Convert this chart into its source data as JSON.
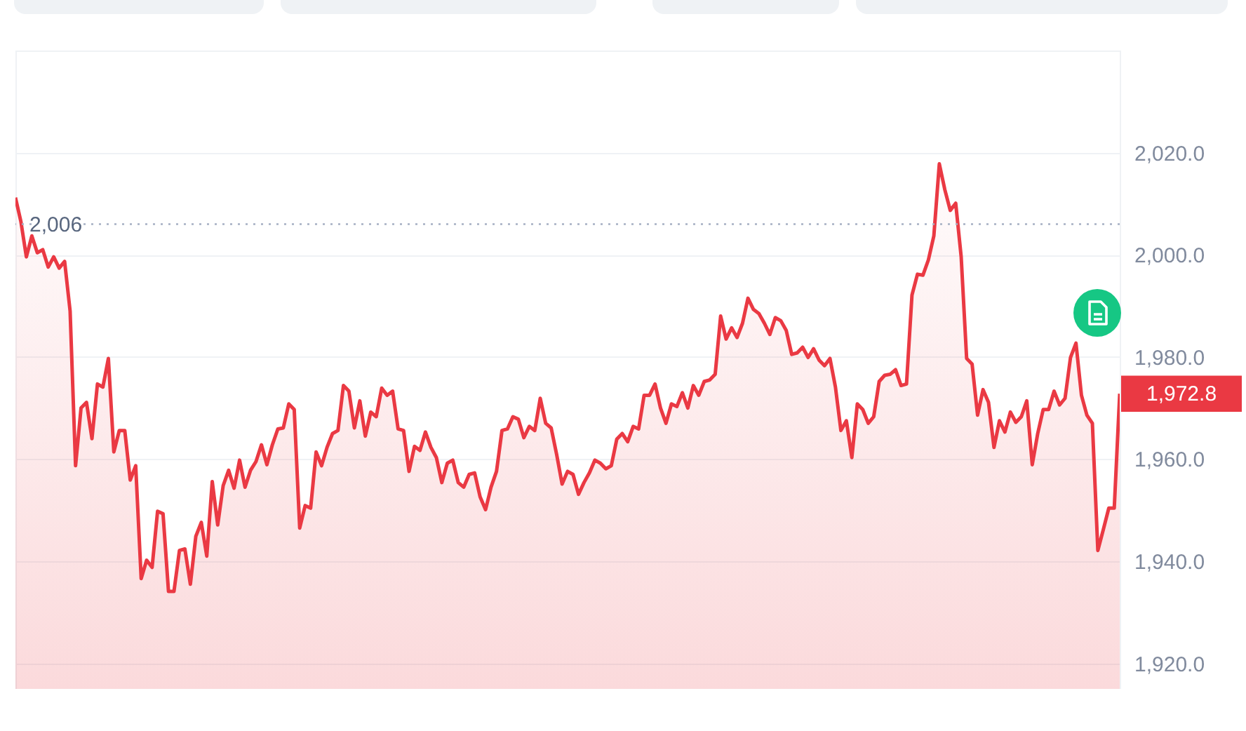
{
  "chart_data": {
    "type": "area",
    "color": "#ea3943",
    "categories": [
      null,
      null,
      null,
      null,
      null,
      null,
      null,
      null,
      null,
      null,
      null,
      null,
      null,
      null,
      null,
      null,
      null,
      null,
      null,
      null,
      null,
      null,
      null,
      null,
      null,
      null,
      null,
      null,
      null,
      null,
      null,
      null,
      null,
      null,
      null,
      null,
      null,
      null,
      null,
      null,
      null,
      null,
      null,
      null,
      null,
      null,
      null,
      null,
      null,
      null,
      null,
      null,
      null,
      null,
      null,
      null,
      null,
      null,
      null,
      null,
      null,
      null,
      null,
      null,
      null,
      null,
      null,
      null,
      null,
      null,
      null,
      null,
      null,
      null,
      null,
      null,
      null,
      null,
      null,
      null,
      null,
      null,
      null,
      null,
      null,
      null,
      null,
      null,
      null,
      null,
      null,
      null,
      null,
      null,
      null,
      null,
      null,
      null,
      null,
      null,
      null,
      null,
      null,
      null,
      null,
      null,
      null,
      null,
      null,
      null,
      null,
      null,
      null,
      null,
      null,
      null,
      null,
      null,
      null,
      null,
      null,
      null,
      null,
      null,
      null,
      null,
      null,
      null,
      null,
      null,
      null,
      null,
      null,
      null,
      null,
      null,
      null,
      null,
      null,
      null,
      null,
      null,
      null,
      null,
      null,
      null,
      null,
      null,
      null,
      null,
      null,
      null,
      null,
      null,
      null,
      null,
      null,
      null,
      null,
      null,
      null,
      null,
      null,
      null,
      null,
      null,
      null,
      null,
      null,
      null,
      null,
      null,
      null,
      null,
      null,
      null,
      null,
      null,
      null,
      null,
      null,
      null,
      null,
      null,
      null,
      null,
      null,
      null,
      null,
      null,
      null,
      null,
      null,
      null,
      null,
      null,
      null,
      null,
      null,
      null,
      null,
      null,
      null
    ],
    "values": [
      2011.2,
      2006.5,
      1999.6,
      2003.7,
      2000.4,
      2001,
      1997.6,
      1999.6,
      1997.4,
      1998.7,
      1989,
      1958.7,
      1970,
      1971.1,
      1964,
      1974.7,
      1974.1,
      1979.7,
      1961.4,
      1965.6,
      1965.6,
      1955.9,
      1958.7,
      1936.6,
      1940.2,
      1938.8,
      1949.8,
      1949.3,
      1934.1,
      1934.1,
      1942.1,
      1942.4,
      1935.5,
      1944.9,
      1947.6,
      1941,
      1955.6,
      1947.1,
      1954.8,
      1957.8,
      1954.3,
      1959.8,
      1954.5,
      1957.8,
      1959.5,
      1962.8,
      1958.9,
      1962.8,
      1965.9,
      1966.1,
      1970.8,
      1969.7,
      1946.5,
      1950.9,
      1950.4,
      1961.4,
      1958.7,
      1962.3,
      1965,
      1965.6,
      1974.4,
      1973.3,
      1966.1,
      1971.4,
      1964.5,
      1969.2,
      1968.3,
      1973.9,
      1972.5,
      1973.3,
      1965.9,
      1965.6,
      1957.6,
      1962.5,
      1961.7,
      1965.3,
      1962.3,
      1960.3,
      1955.4,
      1959.2,
      1959.8,
      1955.4,
      1954.5,
      1957,
      1957.3,
      1952.6,
      1950.1,
      1954.5,
      1957.6,
      1965.6,
      1965.9,
      1968.3,
      1967.8,
      1964.2,
      1966.4,
      1965.6,
      1971.9,
      1967,
      1966.1,
      1960.9,
      1955.1,
      1957.6,
      1957,
      1953.1,
      1955.4,
      1957.3,
      1959.8,
      1959.2,
      1958.1,
      1958.7,
      1963.9,
      1965,
      1963.4,
      1966.4,
      1965.9,
      1972.5,
      1972.5,
      1974.7,
      1970,
      1967,
      1970.8,
      1970.3,
      1973,
      1970,
      1974.4,
      1972.5,
      1975.2,
      1975.5,
      1976.6,
      1988,
      1983.5,
      1985.7,
      1983.8,
      1986.6,
      1991.5,
      1989.3,
      1988.5,
      1986.6,
      1984.4,
      1987.7,
      1987.1,
      1985.2,
      1980.5,
      1980.8,
      1981.9,
      1979.9,
      1981.6,
      1979.4,
      1978.3,
      1979.7,
      1974.1,
      1965.6,
      1967.5,
      1960.3,
      1970.8,
      1969.7,
      1967,
      1968.3,
      1975.2,
      1976.4,
      1976.6,
      1977.5,
      1974.4,
      1974.7,
      1992.1,
      1996.2,
      1996,
      1999,
      2003.7,
      2017.8,
      2012.8,
      2008.7,
      2010.1,
      1999.6,
      1979.7,
      1978.6,
      1968.6,
      1973.6,
      1971.1,
      1962.3,
      1967.5,
      1965.3,
      1969.2,
      1967.2,
      1968.3,
      1971.4,
      1958.9,
      1965,
      1969.7,
      1969.7,
      1973.3,
      1970.6,
      1971.9,
      1979.9,
      1982.7,
      1972.5,
      1968.6,
      1967,
      1942.1,
      1946.2,
      1950.4,
      1950.4,
      1972.8
    ],
    "ylim": [
      1915,
      2040
    ],
    "yticks": [
      {
        "value": 1920,
        "label": "1,920.0"
      },
      {
        "value": 1940,
        "label": "1,940.0"
      },
      {
        "value": 1960,
        "label": "1,960.0"
      },
      {
        "value": 1980,
        "label": "1,980.0"
      },
      {
        "value": 2000,
        "label": "2,000.0"
      },
      {
        "value": 2020,
        "label": "2,020.0"
      }
    ],
    "tick_labels": "y",
    "grid": "y",
    "ref_lines": [
      {
        "axis": "y",
        "value": 2006,
        "label": "2,006",
        "color": "#a6b0c3",
        "line_style": "dotted"
      }
    ],
    "annotations": [
      "1,972.8"
    ]
  }
}
